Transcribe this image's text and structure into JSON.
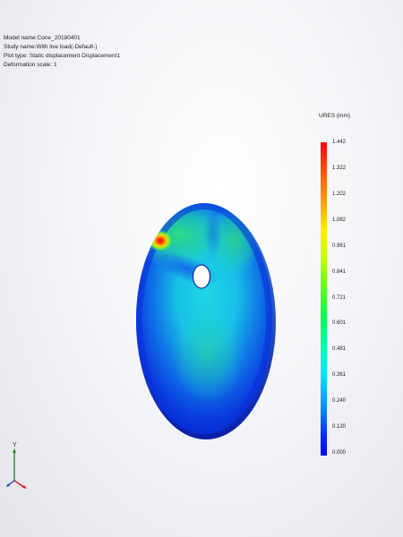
{
  "study_info": {
    "model_name": "Model name:Cone_20180401",
    "study_name": "Study name:With live load(-Default-)",
    "plot_type": "Plot type: Static displacement Displacement1",
    "deformation_scale": "Deformation scale: 1"
  },
  "legend": {
    "title": "URES (mm)",
    "ticks": [
      "1.442",
      "1.322",
      "1.202",
      "1.082",
      "0.961",
      "0.841",
      "0.721",
      "0.601",
      "0.481",
      "0.361",
      "0.240",
      "0.120",
      "0.000"
    ]
  },
  "triad": {
    "y_label": "Y"
  },
  "colors": {
    "max": "#ff0000",
    "mid": "#00ff50",
    "min": "#0000ff"
  }
}
